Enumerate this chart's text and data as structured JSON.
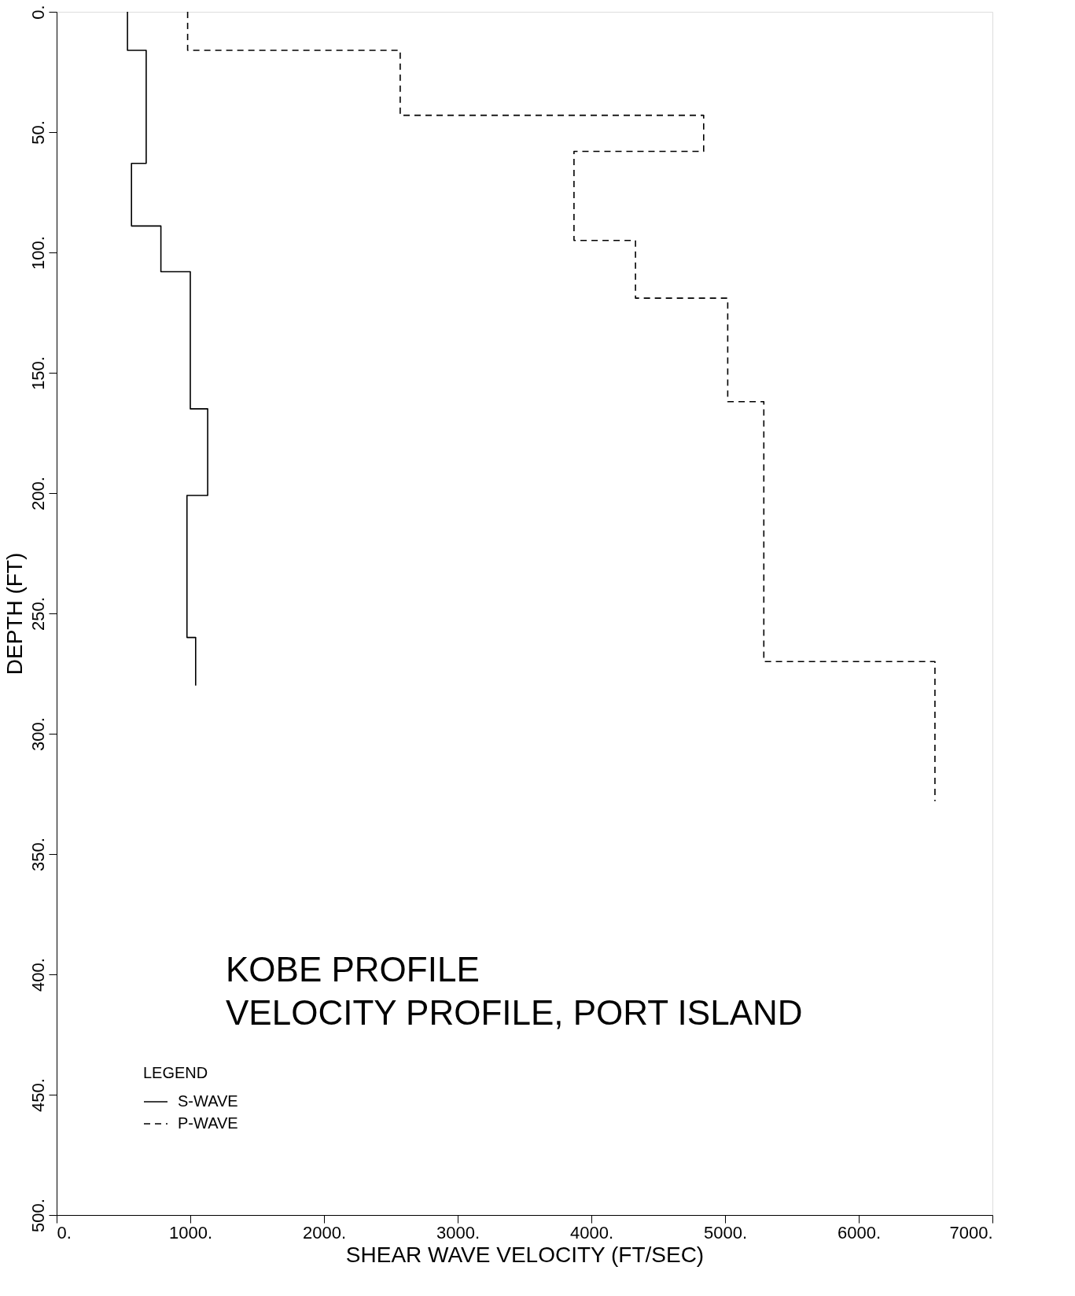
{
  "chart_data": {
    "type": "line",
    "title": "KOBE PROFILE",
    "subtitle": "VELOCITY PROFILE, PORT ISLAND",
    "xlabel": "SHEAR WAVE VELOCITY (FT/SEC)",
    "ylabel": "DEPTH (FT)",
    "legend_title": "LEGEND",
    "legend": "bottom left",
    "grid": false,
    "xlim": [
      0,
      7000
    ],
    "ylim": [
      500,
      0
    ],
    "xticks": [
      {
        "value": 0,
        "label": "0."
      },
      {
        "value": 1000,
        "label": "1000."
      },
      {
        "value": 2000,
        "label": "2000."
      },
      {
        "value": 3000,
        "label": "3000."
      },
      {
        "value": 4000,
        "label": "4000."
      },
      {
        "value": 5000,
        "label": "5000."
      },
      {
        "value": 6000,
        "label": "6000."
      },
      {
        "value": 7000,
        "label": "7000."
      }
    ],
    "yticks": [
      {
        "value": 0,
        "label": "0."
      },
      {
        "value": 50,
        "label": "50."
      },
      {
        "value": 100,
        "label": "100."
      },
      {
        "value": 150,
        "label": "150."
      },
      {
        "value": 200,
        "label": "200."
      },
      {
        "value": 250,
        "label": "250."
      },
      {
        "value": 300,
        "label": "300."
      },
      {
        "value": 350,
        "label": "350."
      },
      {
        "value": 400,
        "label": "400."
      },
      {
        "value": 450,
        "label": "450."
      },
      {
        "value": 500,
        "label": "500."
      }
    ],
    "series": [
      {
        "name": "S-WAVE",
        "color": "#000000",
        "line_style": "solid",
        "x": [
          530,
          530,
          670,
          670,
          560,
          560,
          780,
          780,
          1000,
          1000,
          1130,
          1130,
          975,
          975,
          1040,
          1040
        ],
        "values": [
          0,
          16,
          16,
          63,
          63,
          89,
          89,
          108,
          108,
          165,
          165,
          201,
          201,
          260,
          260,
          280
        ]
      },
      {
        "name": "P-WAVE",
        "color": "#000000",
        "line_style": "dashed",
        "x": [
          980,
          980,
          2570,
          2570,
          4840,
          4840,
          3870,
          3870,
          4330,
          4330,
          5020,
          5020,
          5290,
          5290,
          6570,
          6570
        ],
        "values": [
          0,
          16,
          16,
          43,
          43,
          58,
          58,
          95,
          95,
          119,
          119,
          162,
          162,
          270,
          270,
          328
        ]
      }
    ]
  }
}
